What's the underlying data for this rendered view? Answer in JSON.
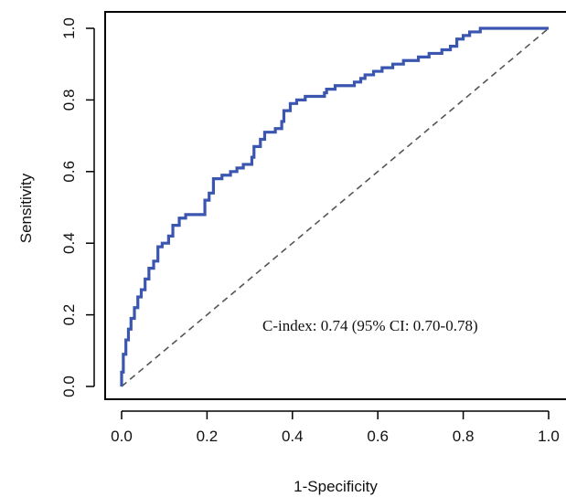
{
  "chart_data": {
    "type": "line",
    "xlabel": "1-Specificity",
    "ylabel": "Sensitivity",
    "xlim": [
      -0.04,
      1.04
    ],
    "ylim": [
      -0.04,
      1.04
    ],
    "x_ticks": [
      "0.0",
      "0.2",
      "0.4",
      "0.6",
      "0.8",
      "1.0"
    ],
    "y_ticks": [
      "0.0",
      "0.2",
      "0.4",
      "0.6",
      "0.8",
      "1.0"
    ],
    "grid": false,
    "annotation": "C-index: 0.74 (95% CI: 0.70-0.78)",
    "colors": {
      "roc_curve": "#3a56b0",
      "reference_line": "#555555",
      "axes": "#000000"
    },
    "series": [
      {
        "style": "solid",
        "points": [
          [
            0.0,
            0.0
          ],
          [
            0.0,
            0.04
          ],
          [
            0.004,
            0.04
          ],
          [
            0.004,
            0.09
          ],
          [
            0.01,
            0.09
          ],
          [
            0.01,
            0.13
          ],
          [
            0.016,
            0.13
          ],
          [
            0.016,
            0.16
          ],
          [
            0.022,
            0.16
          ],
          [
            0.022,
            0.19
          ],
          [
            0.03,
            0.19
          ],
          [
            0.03,
            0.22
          ],
          [
            0.038,
            0.22
          ],
          [
            0.038,
            0.25
          ],
          [
            0.046,
            0.25
          ],
          [
            0.046,
            0.27
          ],
          [
            0.055,
            0.27
          ],
          [
            0.055,
            0.3
          ],
          [
            0.064,
            0.3
          ],
          [
            0.064,
            0.33
          ],
          [
            0.075,
            0.33
          ],
          [
            0.075,
            0.35
          ],
          [
            0.085,
            0.35
          ],
          [
            0.085,
            0.39
          ],
          [
            0.095,
            0.39
          ],
          [
            0.095,
            0.4
          ],
          [
            0.11,
            0.4
          ],
          [
            0.11,
            0.42
          ],
          [
            0.12,
            0.42
          ],
          [
            0.12,
            0.45
          ],
          [
            0.135,
            0.45
          ],
          [
            0.135,
            0.47
          ],
          [
            0.15,
            0.47
          ],
          [
            0.15,
            0.48
          ],
          [
            0.195,
            0.48
          ],
          [
            0.195,
            0.52
          ],
          [
            0.205,
            0.52
          ],
          [
            0.205,
            0.54
          ],
          [
            0.215,
            0.54
          ],
          [
            0.215,
            0.58
          ],
          [
            0.235,
            0.58
          ],
          [
            0.235,
            0.59
          ],
          [
            0.255,
            0.59
          ],
          [
            0.255,
            0.6
          ],
          [
            0.27,
            0.6
          ],
          [
            0.27,
            0.61
          ],
          [
            0.285,
            0.61
          ],
          [
            0.285,
            0.62
          ],
          [
            0.305,
            0.62
          ],
          [
            0.305,
            0.64
          ],
          [
            0.31,
            0.64
          ],
          [
            0.31,
            0.67
          ],
          [
            0.325,
            0.67
          ],
          [
            0.325,
            0.69
          ],
          [
            0.335,
            0.69
          ],
          [
            0.335,
            0.71
          ],
          [
            0.36,
            0.71
          ],
          [
            0.36,
            0.72
          ],
          [
            0.375,
            0.72
          ],
          [
            0.375,
            0.74
          ],
          [
            0.38,
            0.74
          ],
          [
            0.38,
            0.77
          ],
          [
            0.395,
            0.77
          ],
          [
            0.395,
            0.79
          ],
          [
            0.41,
            0.79
          ],
          [
            0.41,
            0.8
          ],
          [
            0.43,
            0.8
          ],
          [
            0.43,
            0.81
          ],
          [
            0.475,
            0.81
          ],
          [
            0.475,
            0.82
          ],
          [
            0.48,
            0.82
          ],
          [
            0.48,
            0.83
          ],
          [
            0.5,
            0.83
          ],
          [
            0.5,
            0.84
          ],
          [
            0.545,
            0.84
          ],
          [
            0.545,
            0.85
          ],
          [
            0.56,
            0.85
          ],
          [
            0.56,
            0.86
          ],
          [
            0.57,
            0.86
          ],
          [
            0.57,
            0.87
          ],
          [
            0.59,
            0.87
          ],
          [
            0.59,
            0.88
          ],
          [
            0.61,
            0.88
          ],
          [
            0.61,
            0.89
          ],
          [
            0.635,
            0.89
          ],
          [
            0.635,
            0.9
          ],
          [
            0.66,
            0.9
          ],
          [
            0.66,
            0.91
          ],
          [
            0.695,
            0.91
          ],
          [
            0.695,
            0.92
          ],
          [
            0.72,
            0.92
          ],
          [
            0.72,
            0.93
          ],
          [
            0.75,
            0.93
          ],
          [
            0.75,
            0.94
          ],
          [
            0.77,
            0.94
          ],
          [
            0.77,
            0.95
          ],
          [
            0.785,
            0.95
          ],
          [
            0.785,
            0.97
          ],
          [
            0.8,
            0.97
          ],
          [
            0.8,
            0.98
          ],
          [
            0.815,
            0.98
          ],
          [
            0.815,
            0.99
          ],
          [
            0.84,
            0.99
          ],
          [
            0.84,
            1.0
          ],
          [
            1.0,
            1.0
          ]
        ]
      },
      {
        "style": "dashed",
        "points": [
          [
            0.0,
            0.0
          ],
          [
            1.0,
            1.0
          ]
        ]
      }
    ]
  }
}
